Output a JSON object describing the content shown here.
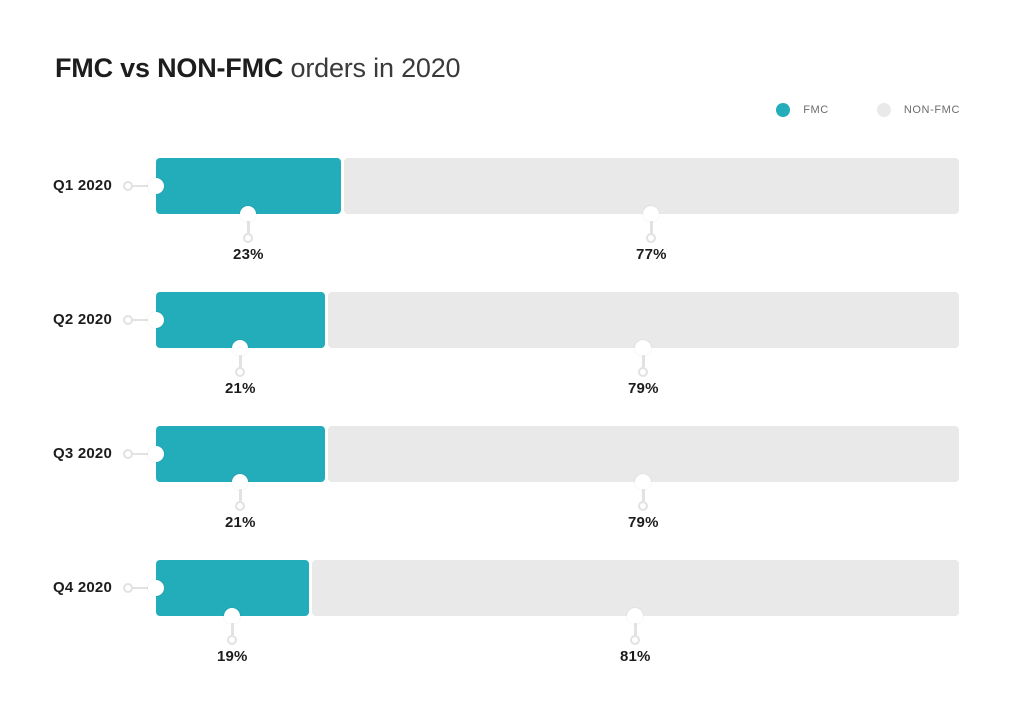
{
  "title": {
    "highlight": "FMC vs NON-FMC",
    "rest": "orders in 2020"
  },
  "legend": {
    "items": [
      {
        "label": "FMC",
        "color": "#23acba"
      },
      {
        "label": "NON-FMC",
        "color": "#e9e9e9"
      }
    ]
  },
  "colors": {
    "fmc": "#23acba",
    "nonfmc": "#e9e9e9",
    "connector": "#e2e2e2",
    "text_dark": "#1d1d1d",
    "title_light": "#3a3a3a",
    "legend_text": "#6c6c6c",
    "background": "#ffffff"
  },
  "chart_data": {
    "type": "bar",
    "orientation": "horizontal",
    "stacked": true,
    "title": "FMC vs NON-FMC orders in 2020",
    "unit": "%",
    "xlim": [
      0,
      100
    ],
    "grid": false,
    "legend_position": "top-right",
    "categories": [
      "Q1 2020",
      "Q2 2020",
      "Q3 2020",
      "Q4 2020"
    ],
    "series": [
      {
        "name": "FMC",
        "color": "#23acba",
        "values": [
          23,
          21,
          21,
          19
        ],
        "labels": [
          "23%",
          "21%",
          "21%",
          "19%"
        ]
      },
      {
        "name": "NON-FMC",
        "color": "#e9e9e9",
        "values": [
          77,
          79,
          79,
          81
        ],
        "labels": [
          "77%",
          "79%",
          "79%",
          "81%"
        ]
      }
    ]
  }
}
